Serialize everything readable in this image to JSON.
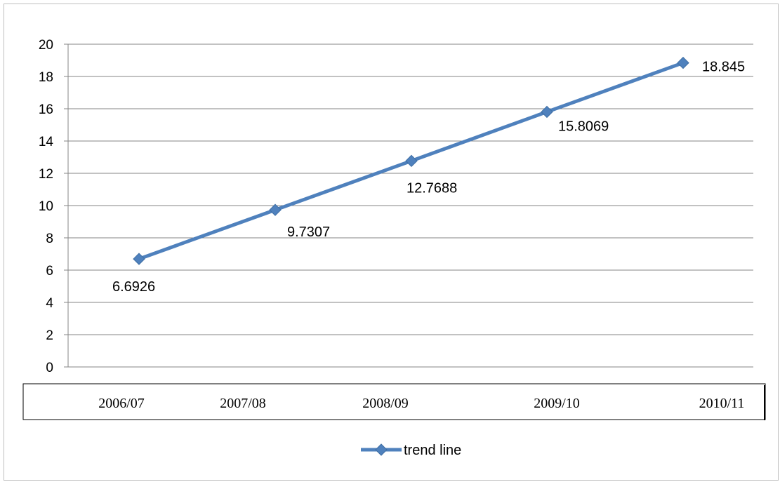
{
  "chart_data": {
    "type": "line",
    "categories": [
      "2006/07",
      "2007/08",
      "2008/09",
      "2009/10",
      "2010/11"
    ],
    "series": [
      {
        "name": "trend line",
        "values": [
          6.6926,
          9.7307,
          12.7688,
          15.8069,
          18.845
        ],
        "color": "#4f81bd",
        "marker": "diamond"
      }
    ],
    "data_labels": [
      "6.6926",
      "9.7307",
      "12.7688",
      "15.8069",
      "18.845"
    ],
    "y_ticks": [
      "0",
      "2",
      "4",
      "6",
      "8",
      "10",
      "12",
      "14",
      "16",
      "18",
      "20"
    ],
    "ylim": [
      0,
      20
    ],
    "y_step": 2,
    "grid": true,
    "legend_position": "bottom",
    "title": "",
    "xlabel": "",
    "ylabel": ""
  }
}
